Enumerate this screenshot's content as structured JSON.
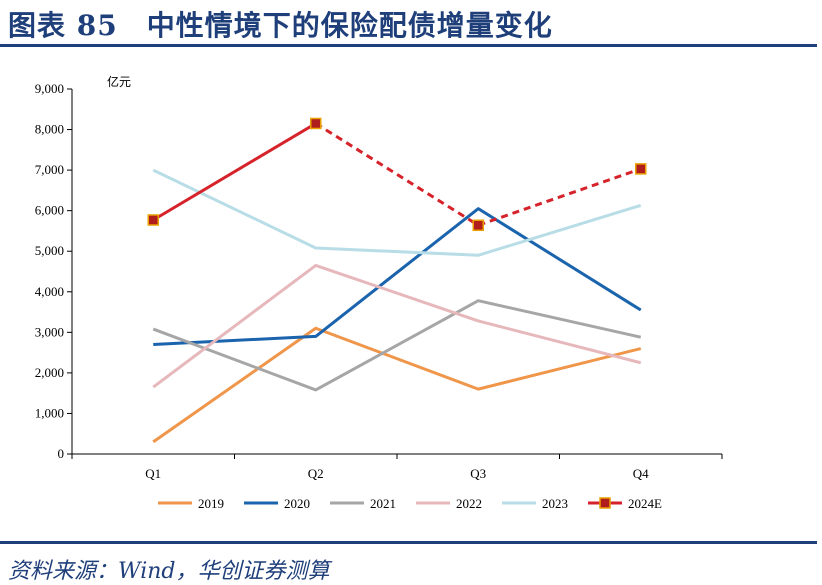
{
  "header": {
    "title": "图表 85　中性情境下的保险配债增量变化"
  },
  "footer": {
    "source": "资料来源：Wind，华创证券测算"
  },
  "colors": {
    "brand": "#1f3f7a",
    "s2019": "#f0964a",
    "s2020": "#1a63ad",
    "s2021": "#a6a6a6",
    "s2022": "#e6b8bb",
    "s2023": "#b8dde6",
    "s2024": "#d6222a"
  },
  "chart_data": {
    "type": "line",
    "unit_label": "亿元",
    "categories": [
      "Q1",
      "Q2",
      "Q3",
      "Q4"
    ],
    "ylim": [
      0,
      9000
    ],
    "yticks": [
      "0",
      "1,000",
      "2,000",
      "3,000",
      "4,000",
      "5,000",
      "6,000",
      "7,000",
      "8,000",
      "9,000"
    ],
    "grid": false,
    "legend_position": "bottom",
    "series": [
      {
        "name": "2019",
        "values": [
          300,
          3100,
          1600,
          2600
        ]
      },
      {
        "name": "2020",
        "values": [
          2700,
          2900,
          6050,
          3550
        ]
      },
      {
        "name": "2021",
        "values": [
          3080,
          1580,
          3780,
          2880
        ]
      },
      {
        "name": "2022",
        "values": [
          1650,
          4650,
          3280,
          2250
        ]
      },
      {
        "name": "2023",
        "values": [
          7000,
          5080,
          4900,
          6130
        ]
      },
      {
        "name": "2024E",
        "values": [
          5770,
          8150,
          5640,
          7030
        ]
      }
    ]
  }
}
